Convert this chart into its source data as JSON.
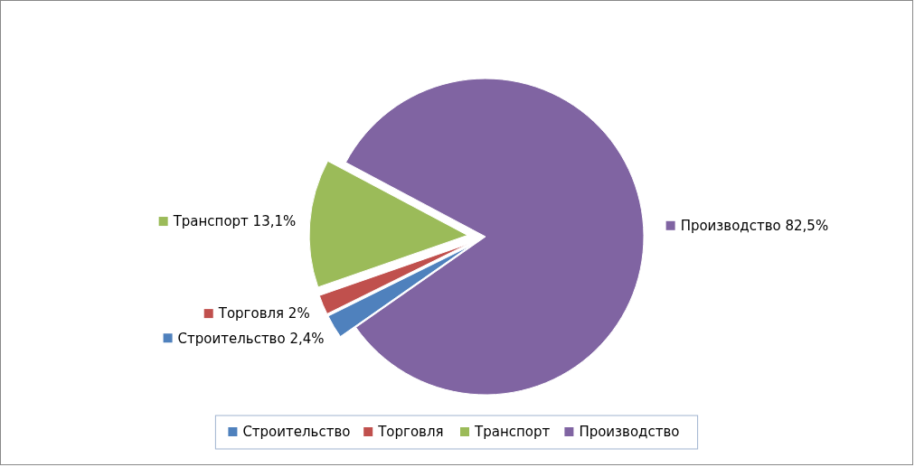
{
  "chart_data": {
    "type": "pie",
    "categories": [
      "Строительство",
      "Торговля",
      "Транспорт",
      "Производство"
    ],
    "values": [
      2.4,
      2,
      13.1,
      82.5
    ],
    "value_labels": [
      "2,4%",
      "2%",
      "13,1%",
      "82,5%"
    ],
    "colors": [
      "#4f81bd",
      "#c0504d",
      "#9bbb59",
      "#8064a2"
    ],
    "legend": "bottom"
  }
}
